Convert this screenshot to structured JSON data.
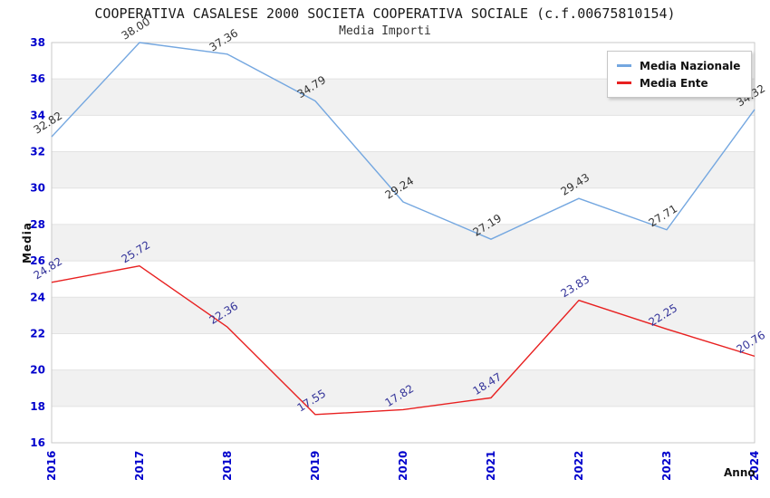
{
  "header": {
    "title": "COOPERATIVA CASALESE 2000 SOCIETA COOPERATIVA SOCIALE (c.f.00675810154)",
    "subtitle": "Media Importi"
  },
  "axes": {
    "ylabel": "Media",
    "xlabel": "Anno"
  },
  "chart_data": {
    "type": "line",
    "title": "COOPERATIVA CASALESE 2000 SOCIETA COOPERATIVA SOCIALE (c.f.00675810154)",
    "subtitle": "Media Importi",
    "xlabel": "Anno",
    "ylabel": "Media",
    "x": [
      "2016",
      "2017",
      "2018",
      "2019",
      "2020",
      "2021",
      "2022",
      "2023",
      "2024"
    ],
    "series": [
      {
        "name": "Media Nazionale",
        "color": "#74A7E0",
        "label_color": "#333333",
        "values": [
          32.82,
          38.0,
          37.36,
          34.79,
          29.24,
          27.19,
          29.43,
          27.71,
          34.32
        ]
      },
      {
        "name": "Media Ente",
        "color": "#E82020",
        "label_color": "#333399",
        "values": [
          24.82,
          25.72,
          22.36,
          17.55,
          17.82,
          18.47,
          23.83,
          22.25,
          20.76
        ]
      }
    ],
    "ylim": [
      16,
      38
    ],
    "ytick_step": 2,
    "grid": "horizontal-bands",
    "legend_position": "top-right",
    "colors": {
      "tick_label": "#0000CC",
      "band": "#F1F1F1",
      "gridline": "#E2E2E2",
      "plot_border": "#C9C9C9"
    }
  }
}
